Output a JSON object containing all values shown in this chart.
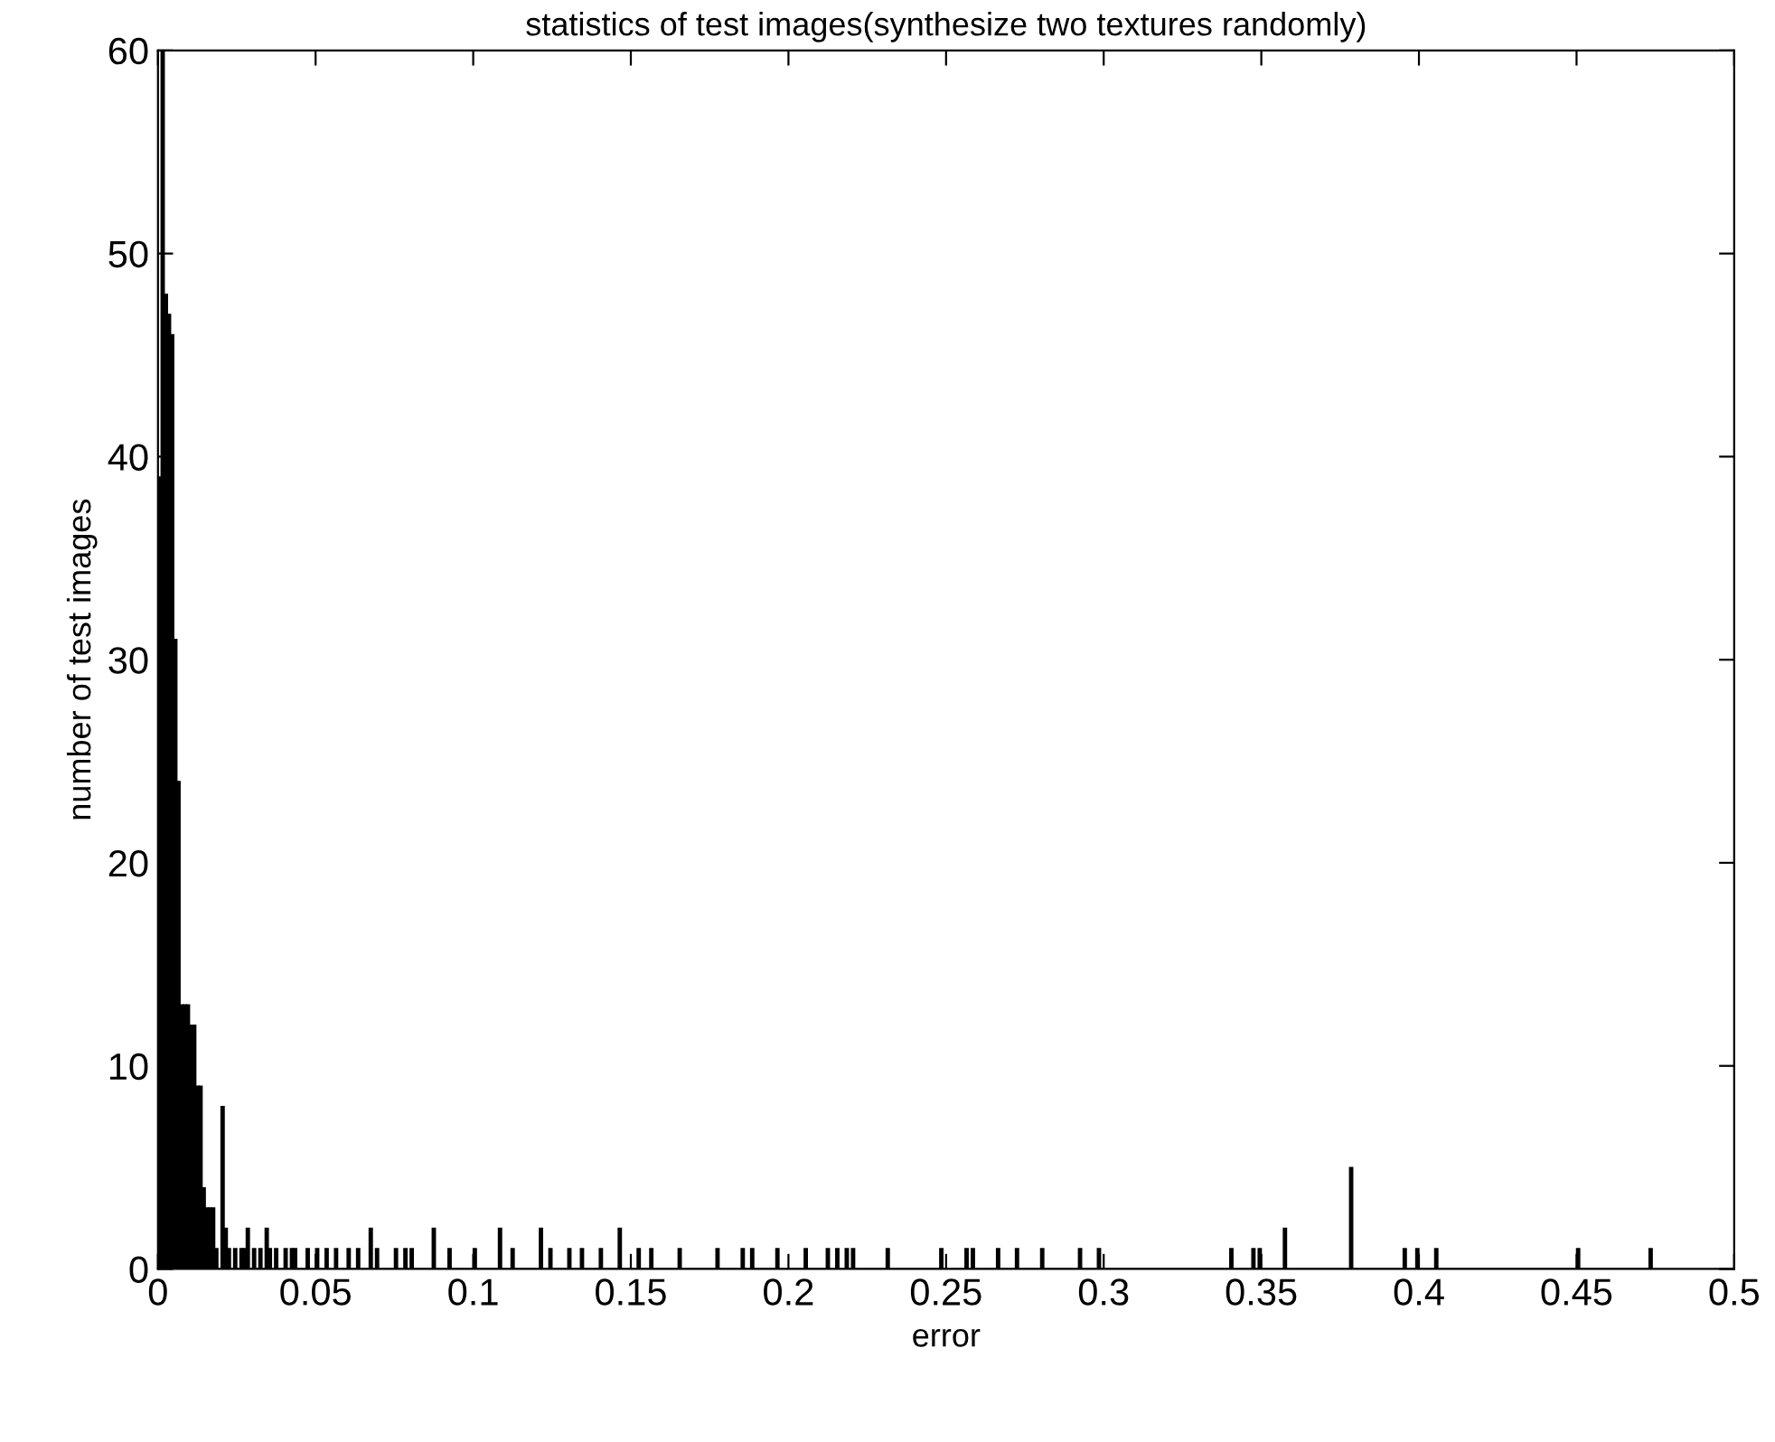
{
  "chart_data": {
    "type": "histogram",
    "title": "statistics of test images(synthesize two textures randomly)",
    "xlabel": "error",
    "ylabel": "number of test images",
    "color": "#000000",
    "bins": [
      0,
      0.001,
      0.002,
      0.003,
      0.004,
      0.005,
      0.006,
      0.007,
      0.008,
      0.009,
      0.01,
      0.011,
      0.012,
      0.013,
      0.014,
      0.015,
      0.016,
      0.017,
      0.018,
      0.019,
      0.02,
      0.021,
      0.022,
      0.023,
      0.024,
      0.025,
      0.026,
      0.027,
      0.028,
      0.029,
      0.03,
      0.031,
      0.032,
      0.033,
      0.034,
      0.035,
      0.036,
      0.037,
      0.038,
      0.039,
      0.04,
      0.041,
      0.042,
      0.043,
      0.044,
      0.045,
      0.047,
      0.048,
      0.05,
      0.051,
      0.053,
      0.054,
      0.056,
      0.057,
      0.06,
      0.061,
      0.063,
      0.064,
      0.067,
      0.068,
      0.069,
      0.07,
      0.075,
      0.076,
      0.078,
      0.079,
      0.08,
      0.081,
      0.087,
      0.088,
      0.092,
      0.093,
      0.1,
      0.101,
      0.108,
      0.109,
      0.112,
      0.113,
      0.121,
      0.122,
      0.124,
      0.125,
      0.13,
      0.131,
      0.134,
      0.135,
      0.14,
      0.141,
      0.146,
      0.147,
      0.152,
      0.153,
      0.156,
      0.157,
      0.165,
      0.166,
      0.177,
      0.178,
      0.185,
      0.186,
      0.188,
      0.189,
      0.196,
      0.197,
      0.205,
      0.206,
      0.212,
      0.213,
      0.215,
      0.216,
      0.218,
      0.219,
      0.22,
      0.221,
      0.231,
      0.232,
      0.248,
      0.249,
      0.256,
      0.257,
      0.258,
      0.259,
      0.266,
      0.267,
      0.272,
      0.273,
      0.28,
      0.281,
      0.292,
      0.293,
      0.298,
      0.299,
      0.34,
      0.341,
      0.347,
      0.348,
      0.349,
      0.35,
      0.357,
      0.358,
      0.378,
      0.379,
      0.395,
      0.396,
      0.399,
      0.4,
      0.405,
      0.406,
      0.45,
      0.451,
      0.473,
      0.474
    ],
    "values": [
      39,
      60,
      48,
      47,
      46,
      31,
      24,
      13,
      13,
      13,
      12,
      12,
      9,
      9,
      4,
      3,
      3,
      3,
      1,
      0,
      8,
      2,
      1,
      0,
      1,
      0,
      1,
      1,
      2,
      0,
      1,
      0,
      1,
      0,
      2,
      1,
      0,
      1,
      0,
      0,
      1,
      0,
      1,
      1,
      0,
      0,
      1,
      0,
      1,
      0,
      1,
      0,
      1,
      0,
      1,
      0,
      1,
      0,
      2,
      0,
      1,
      0,
      1,
      0,
      1,
      0,
      1,
      0,
      2,
      0,
      1,
      0,
      1,
      0,
      2,
      0,
      1,
      0,
      2,
      0,
      1,
      0,
      1,
      0,
      1,
      0,
      1,
      0,
      2,
      0,
      1,
      0,
      1,
      0,
      1,
      0,
      1,
      0,
      1,
      0,
      1,
      0,
      1,
      0,
      1,
      0,
      1,
      0,
      1,
      0,
      1,
      0,
      1,
      0,
      1,
      0,
      1,
      0,
      1,
      0,
      1,
      0,
      1,
      0,
      1,
      0,
      1,
      0,
      1,
      0,
      1,
      0,
      1,
      0,
      1,
      0,
      1,
      0,
      2,
      0,
      5,
      0,
      1,
      0,
      1,
      0,
      1,
      0,
      1,
      0,
      1
    ],
    "xlim": [
      0,
      0.5
    ],
    "xticks": [
      0,
      0.05,
      0.1,
      0.15,
      0.2,
      0.25,
      0.3,
      0.35,
      0.4,
      0.45,
      0.5
    ],
    "ylim": [
      0,
      60
    ],
    "yticks": [
      0,
      10,
      20,
      30,
      40,
      50,
      60
    ],
    "grid": false,
    "legend": false
  }
}
